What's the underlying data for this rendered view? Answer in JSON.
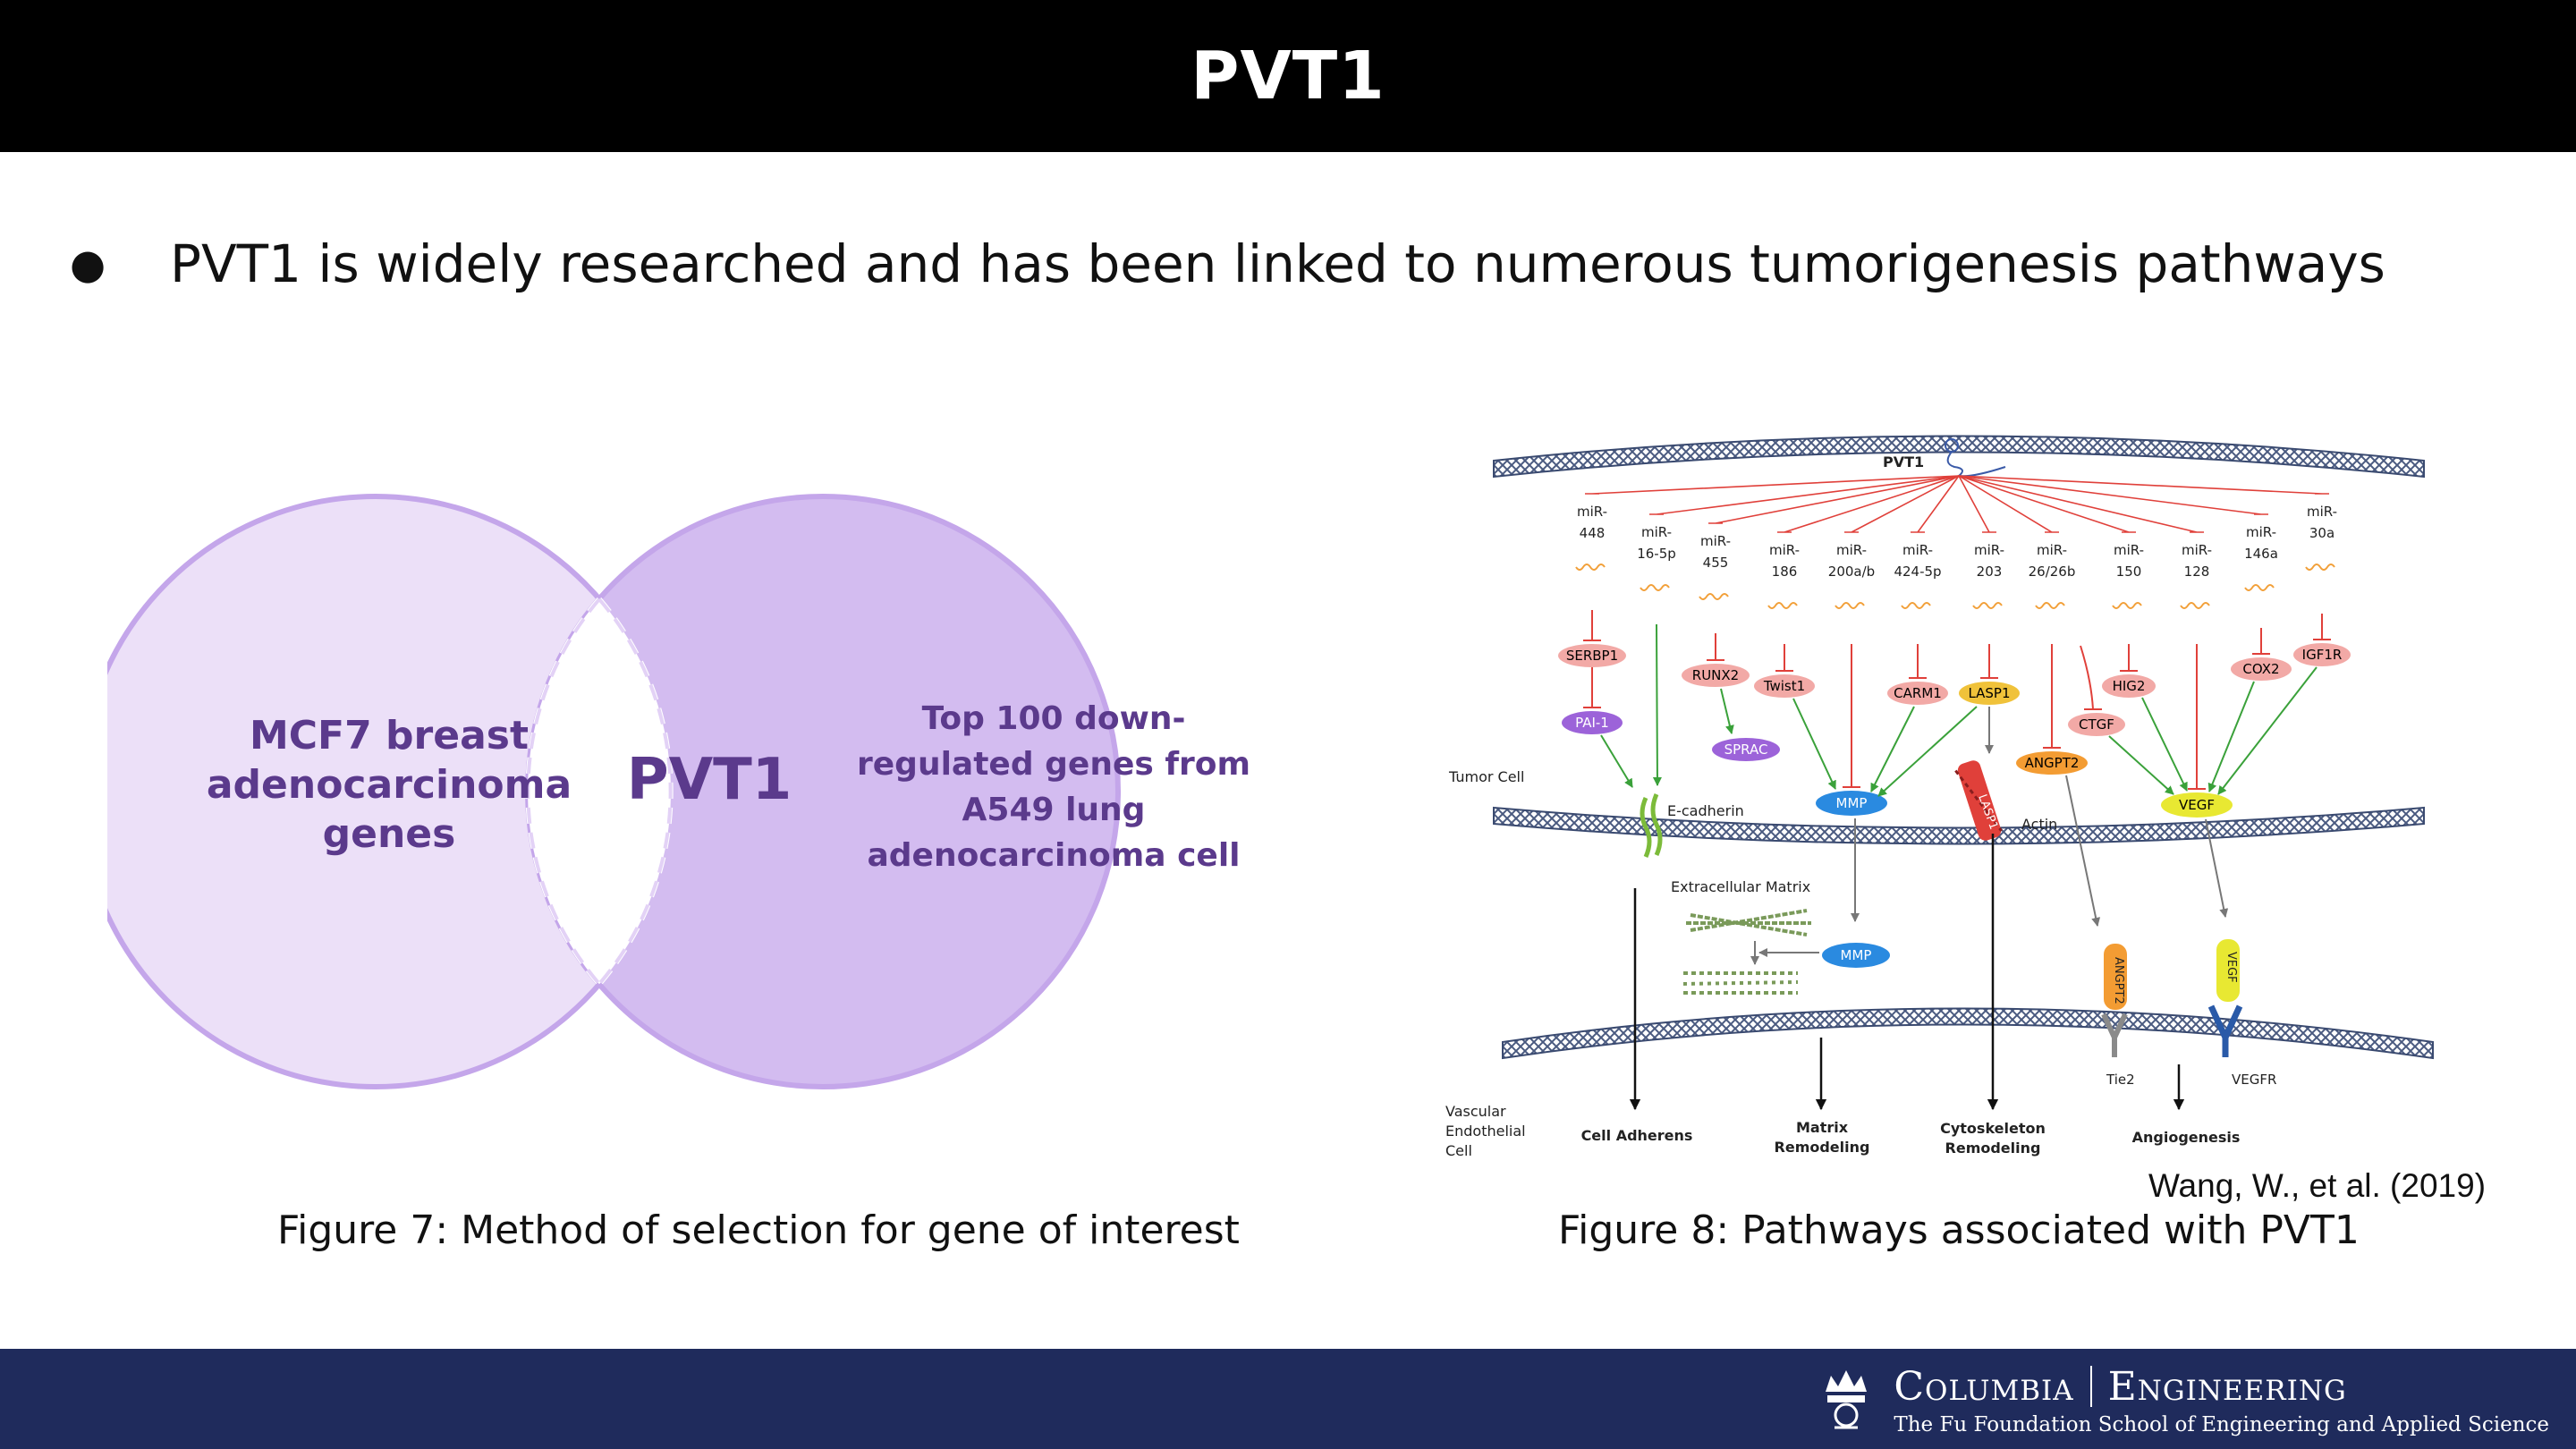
{
  "slide": {
    "title": "PVT1",
    "bullet": "PVT1 is widely researched and has been linked to numerous tumorigenesis pathways"
  },
  "figure7": {
    "left_circle_lines": [
      "MCF7 breast",
      "adenocarcinoma",
      "genes"
    ],
    "right_circle_lines": [
      "Top 100 down-",
      "regulated genes from",
      "A549 lung",
      "adenocarcinoma cell"
    ],
    "center_label": "PVT1",
    "caption": "Figure 7: Method of selection for gene of interest",
    "colors": {
      "left_fill": "#ece0f8",
      "right_fill": "#d3bcf0",
      "stroke": "#c4a6ea",
      "text": "#5b3a8c"
    }
  },
  "figure8": {
    "caption": "Figure 8: Pathways associated with PVT1",
    "citation": "Wang, W., et al. (2019)",
    "pvt1_label": "PVT1",
    "mirnas": [
      [
        "miR-",
        "448"
      ],
      [
        "miR-",
        "16-5p"
      ],
      [
        "miR-",
        "455"
      ],
      [
        "miR-",
        "186"
      ],
      [
        "miR-",
        "200a/b"
      ],
      [
        "miR-",
        "424-5p"
      ],
      [
        "miR-",
        "203"
      ],
      [
        "miR-",
        "26/26b"
      ],
      [
        "miR-",
        "150"
      ],
      [
        "miR-",
        "128"
      ],
      [
        "miR-",
        "146a"
      ],
      [
        "miR-",
        "30a"
      ]
    ],
    "targets": {
      "serbp1": "SERBP1",
      "pai1": "PAI-1",
      "runx2": "RUNX2",
      "twist1": "Twist1",
      "sprac": "SPRAC",
      "carm1": "CARM1",
      "lasp1": "LASP1",
      "ctgf": "CTGF",
      "hig2": "HIG2",
      "angpt2": "ANGPT2",
      "cox2": "COX2",
      "igf1r": "IGF1R",
      "mmp": "MMP",
      "vegf": "VEGF"
    },
    "labels": {
      "tumor_cell": "Tumor Cell",
      "e_cadherin": "E-cadherin",
      "actin": "Actin",
      "lasp1_membrane": "LASP1",
      "extracellular_matrix": "Extracellular Matrix",
      "mmp2": "MMP",
      "angpt2_receptor": "ANGPT2",
      "vegf_receptor": "VEGF",
      "tie2": "Tie2",
      "vegfr": "VEGFR",
      "vascular": [
        "Vascular",
        "Endothelial",
        "Cell"
      ],
      "cell_adherens": "Cell Adherens",
      "matrix_remodeling": [
        "Matrix",
        "Remodeling"
      ],
      "cytoskeleton_remodeling": [
        "Cytoskeleton",
        "Remodeling"
      ],
      "angiogenesis": "Angiogenesis"
    }
  },
  "footer": {
    "logo_left": "Columbia",
    "logo_right": "Engineering",
    "logo_sub": "The Fu Foundation School of Engineering and Applied Science",
    "background": "#1f2b5c"
  }
}
